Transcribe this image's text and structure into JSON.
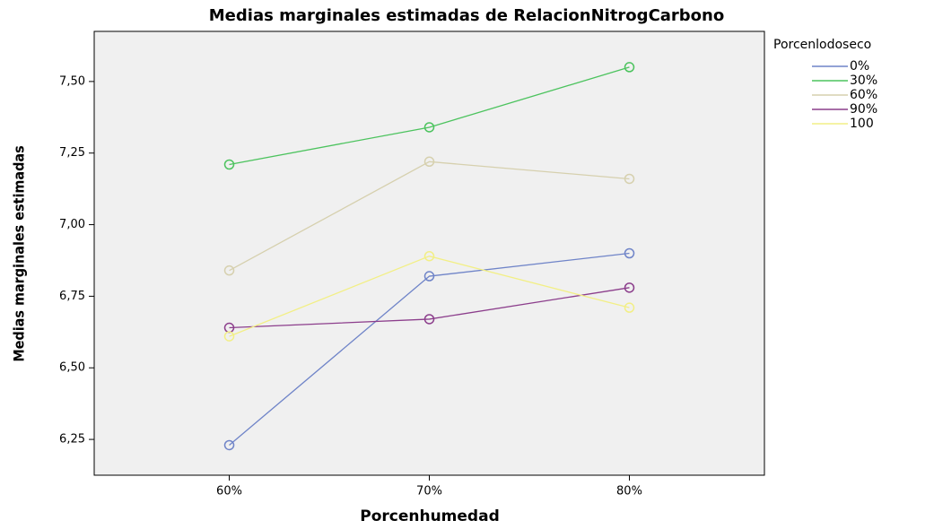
{
  "chart_data": {
    "type": "line",
    "title": "Medias marginales estimadas de RelacionNitrogCarbono",
    "x_label": "Porcenhumedad",
    "y_label": "Medias marginales estimadas",
    "legend_title": "Porcenlodoseco",
    "legend_position": "right",
    "categories": [
      "60%",
      "70%",
      "80%"
    ],
    "series": [
      {
        "name": "0%",
        "color": "#6f84c8",
        "values": [
          6.23,
          6.82,
          6.9
        ]
      },
      {
        "name": "30%",
        "color": "#4cc35e",
        "values": [
          7.21,
          7.34,
          7.55
        ]
      },
      {
        "name": "60%",
        "color": "#d6d0ae",
        "values": [
          6.84,
          7.22,
          7.16
        ]
      },
      {
        "name": "90%",
        "color": "#8c3e8c",
        "values": [
          6.64,
          6.67,
          6.78
        ]
      },
      {
        "name": "100",
        "color": "#f2ef86",
        "values": [
          6.61,
          6.89,
          6.71
        ]
      }
    ],
    "ylim": [
      6.125,
      7.675
    ],
    "yticks": [
      {
        "value": 6.25,
        "label": "6,25"
      },
      {
        "value": 6.5,
        "label": "6,50"
      },
      {
        "value": 6.75,
        "label": "6,75"
      },
      {
        "value": 7.0,
        "label": "7,00"
      },
      {
        "value": 7.25,
        "label": "7,25"
      },
      {
        "value": 7.5,
        "label": "7,50"
      }
    ]
  }
}
